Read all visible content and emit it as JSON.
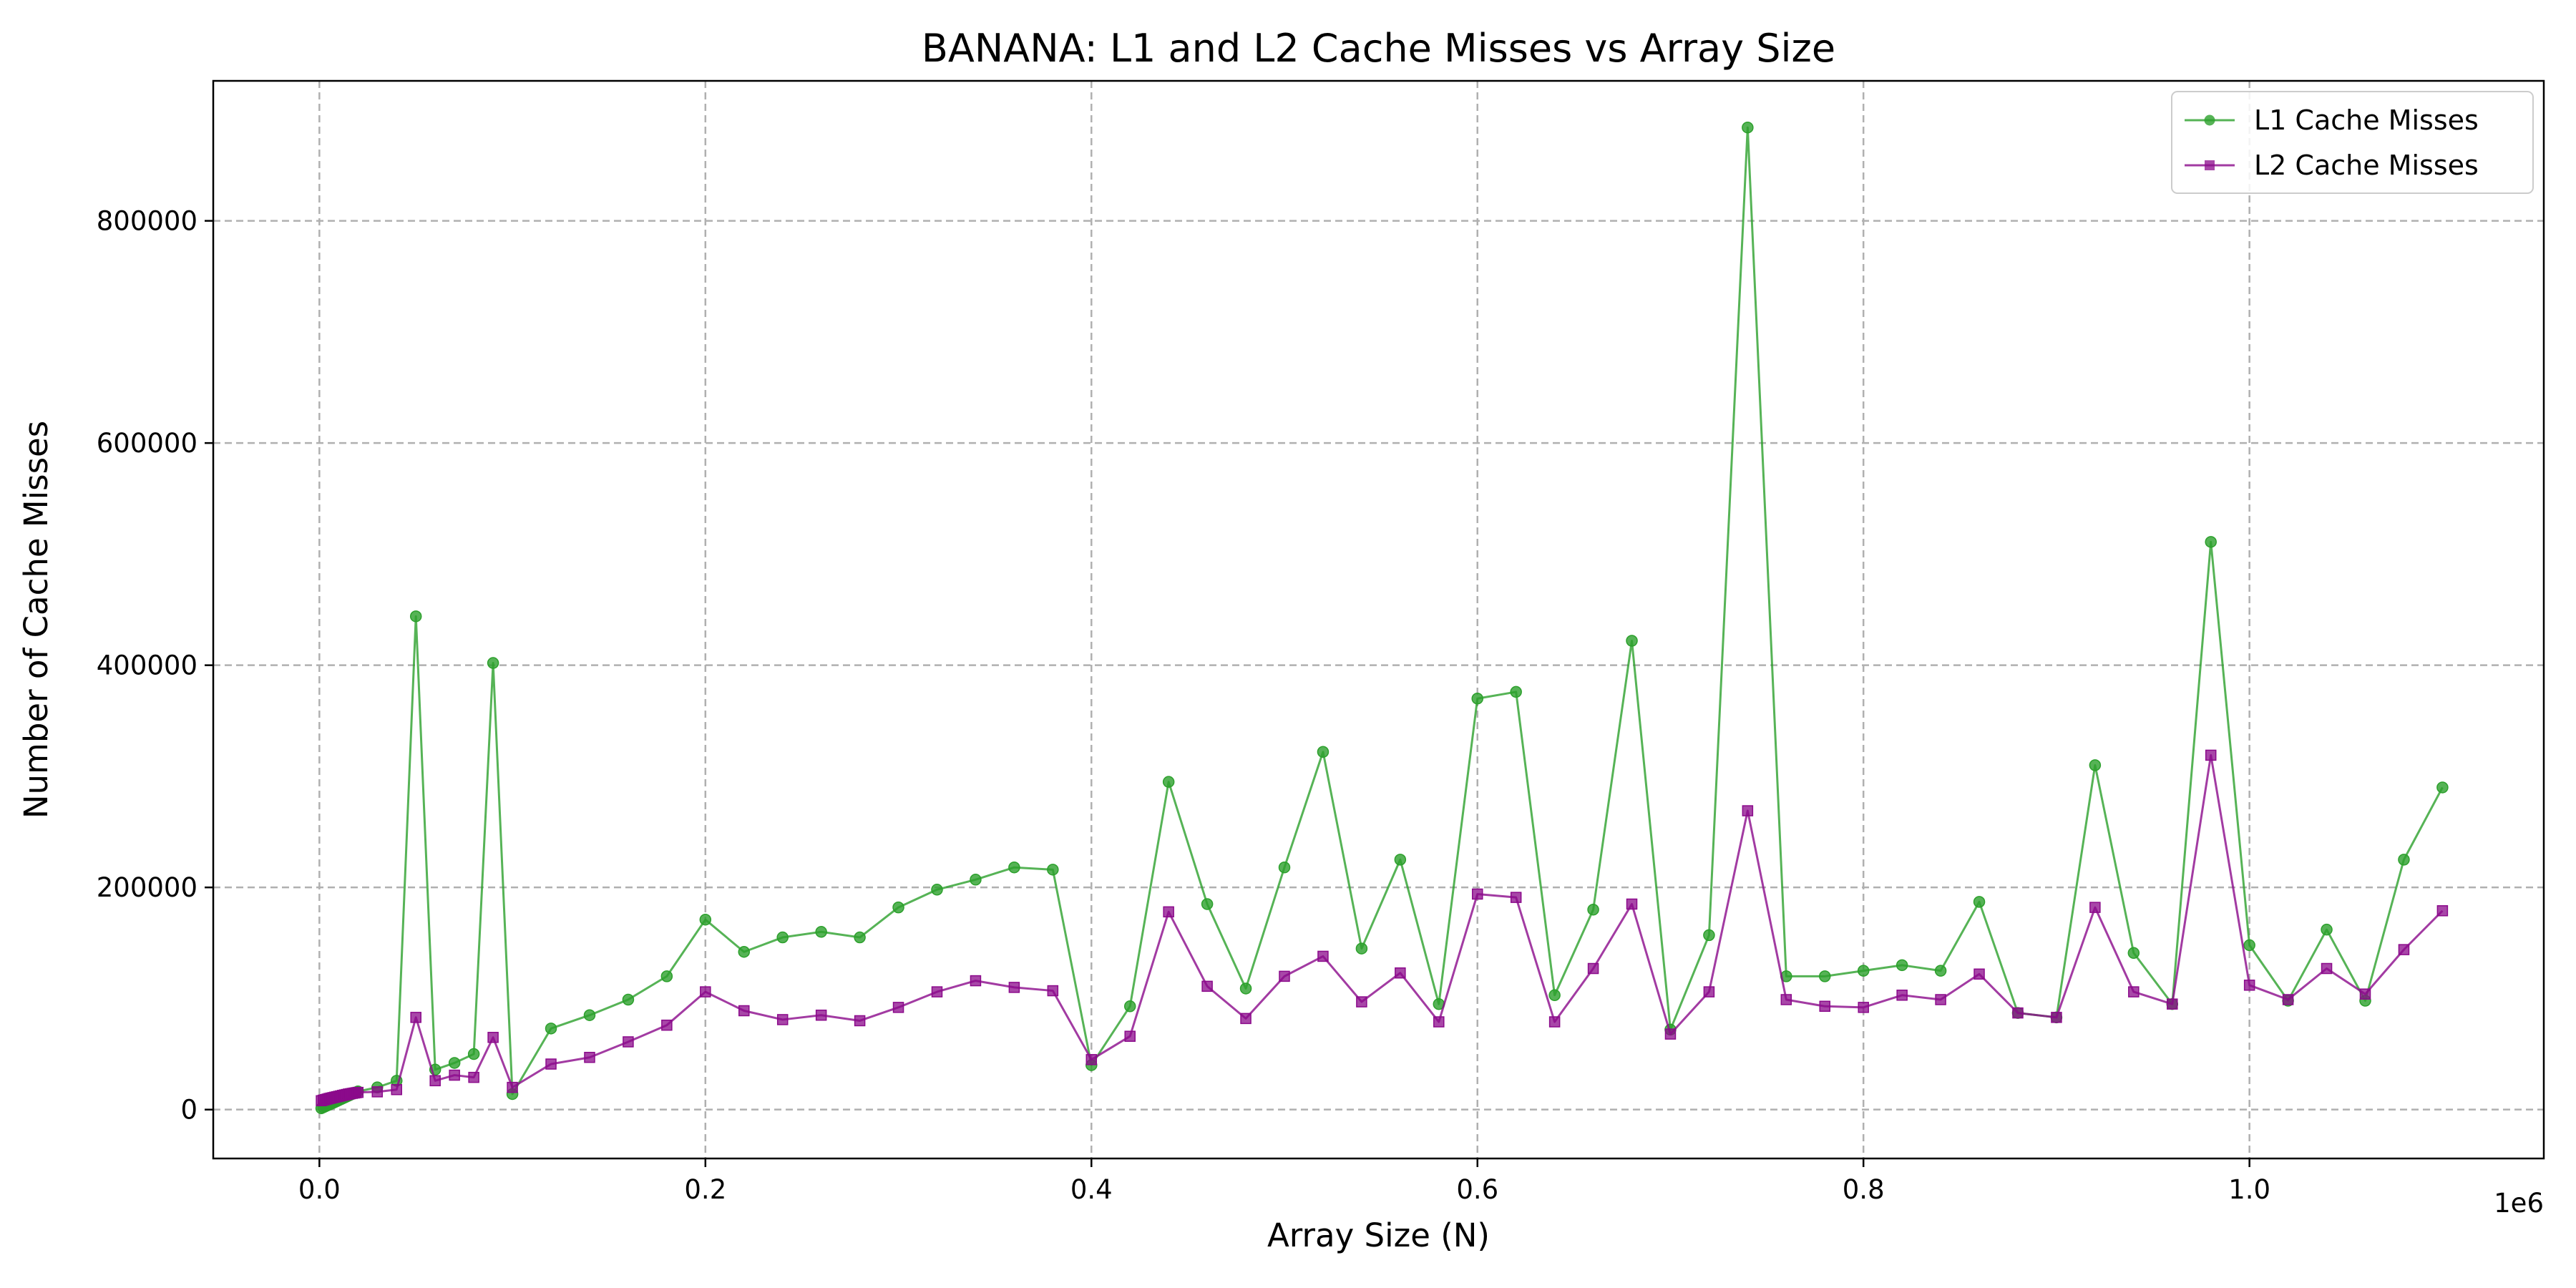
{
  "chart_data": {
    "type": "line",
    "title": "BANANA: L1 and L2 Cache Misses vs Array Size",
    "xlabel": "Array Size (N)",
    "ylabel": "Number of Cache Misses",
    "x_offset_label": "1e6",
    "xlim": [
      -0.055,
      1.1525
    ],
    "ylim": [
      -44000,
      926000
    ],
    "x_ticks": [
      0.0,
      0.2,
      0.4,
      0.6,
      0.8,
      1.0
    ],
    "x_tick_labels": [
      "0.0",
      "0.2",
      "0.4",
      "0.6",
      "0.8",
      "1.0"
    ],
    "y_ticks": [
      0,
      200000,
      400000,
      600000,
      800000
    ],
    "y_tick_labels": [
      "0",
      "200000",
      "400000",
      "600000",
      "800000"
    ],
    "grid": true,
    "legend_position": "top-right",
    "x": [
      0.001,
      0.002,
      0.003,
      0.004,
      0.005,
      0.006,
      0.007,
      0.008,
      0.009,
      0.01,
      0.011,
      0.012,
      0.013,
      0.014,
      0.015,
      0.016,
      0.017,
      0.018,
      0.019,
      0.02,
      0.03,
      0.04,
      0.05,
      0.06,
      0.07,
      0.08,
      0.09,
      0.1,
      0.12,
      0.14,
      0.16,
      0.18,
      0.2,
      0.22,
      0.24,
      0.26,
      0.28,
      0.3,
      0.32,
      0.34,
      0.36,
      0.38,
      0.4,
      0.42,
      0.44,
      0.46,
      0.48,
      0.5,
      0.52,
      0.54,
      0.56,
      0.58,
      0.6,
      0.62,
      0.64,
      0.66,
      0.68,
      0.7,
      0.72,
      0.74,
      0.76,
      0.78,
      0.8,
      0.82,
      0.84,
      0.86,
      0.88,
      0.9,
      0.92,
      0.94,
      0.96,
      0.98,
      1.0,
      1.02,
      1.04,
      1.06,
      1.08,
      1.1
    ],
    "series": [
      {
        "name": "L1 Cache Misses",
        "color": "#2ca02c",
        "marker": "circle",
        "values": [
          1200,
          2000,
          2800,
          3600,
          4400,
          5200,
          6000,
          6800,
          7600,
          8400,
          9200,
          10000,
          10800,
          11600,
          12400,
          13200,
          14000,
          14800,
          15600,
          16400,
          20000,
          26000,
          444000,
          36000,
          42000,
          50000,
          402000,
          14000,
          73000,
          85000,
          99000,
          120000,
          171000,
          142000,
          155000,
          160000,
          155000,
          182000,
          198000,
          207000,
          218000,
          216000,
          40000,
          93000,
          295000,
          185000,
          109000,
          218000,
          322000,
          145000,
          225000,
          95000,
          370000,
          376000,
          103000,
          180000,
          422000,
          72000,
          157000,
          884000,
          120000,
          120000,
          125000,
          130000,
          125000,
          187000,
          87000,
          83000,
          310000,
          141000,
          95000,
          511000,
          148000,
          98000,
          162000,
          98000,
          225000,
          290000
        ]
      },
      {
        "name": "L2 Cache Misses",
        "color": "#8b0a8b",
        "marker": "square",
        "values": [
          8000,
          8500,
          9000,
          9500,
          10000,
          10400,
          10800,
          11200,
          11600,
          12000,
          12400,
          12800,
          13200,
          13600,
          14000,
          14300,
          14600,
          14900,
          15200,
          15500,
          16000,
          18000,
          83000,
          26000,
          31000,
          29000,
          65000,
          20000,
          41000,
          47000,
          61000,
          76000,
          106000,
          89000,
          81000,
          85000,
          80000,
          92000,
          106000,
          116000,
          110000,
          107000,
          45000,
          66000,
          178000,
          111000,
          82000,
          120000,
          138000,
          97000,
          123000,
          79000,
          194000,
          191000,
          79000,
          127000,
          185000,
          68000,
          106000,
          269000,
          99000,
          93000,
          92000,
          103000,
          99000,
          122000,
          87000,
          83000,
          182000,
          106000,
          95000,
          319000,
          112000,
          99000,
          127000,
          104000,
          144000,
          179000
        ]
      }
    ]
  }
}
